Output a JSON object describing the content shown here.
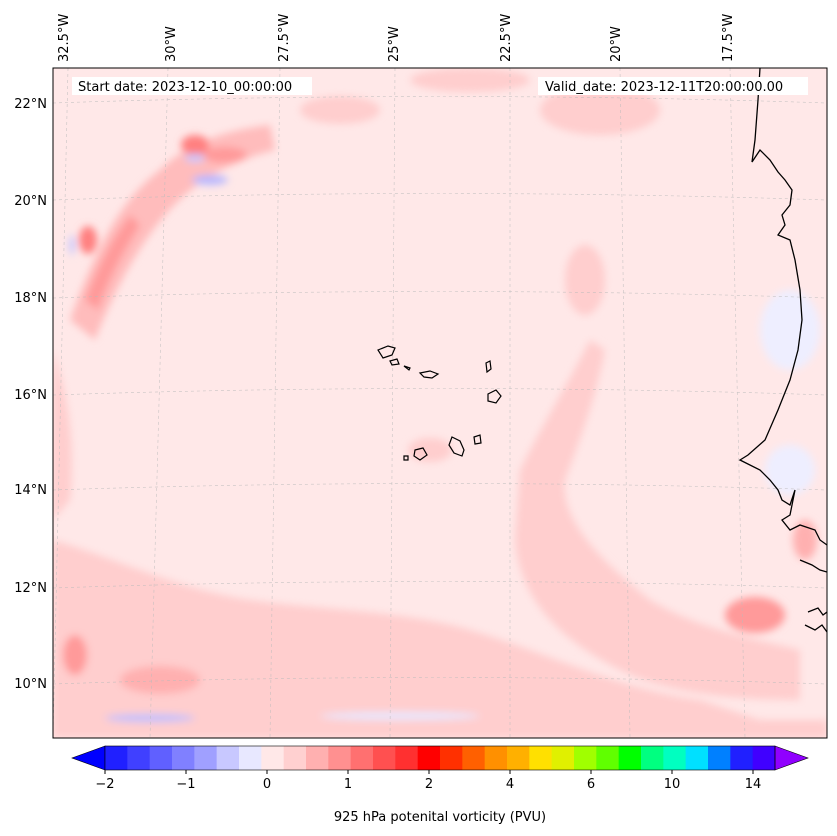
{
  "header": {
    "start_date": "Start date: 2023-12-10_00:00:00",
    "valid_date": "Valid_date: 2023-12-11T20:00:00.00"
  },
  "lon_labels": [
    "32.5°W",
    "30°W",
    "27.5°W",
    "25°W",
    "22.5°W",
    "20°W",
    "17.5°W"
  ],
  "lat_labels": [
    "22°N",
    "20°N",
    "18°N",
    "16°N",
    "14°N",
    "12°N",
    "10°N"
  ],
  "colorbar": {
    "label": "925 hPa potenital vorticity (PVU)",
    "ticks": [
      "−2",
      "−1",
      "0",
      "1",
      "2",
      "4",
      "6",
      "10",
      "14"
    ],
    "colors": [
      "#0000ff",
      "#2020ff",
      "#4040ff",
      "#6060ff",
      "#8080ff",
      "#a0a0ff",
      "#c8c8ff",
      "#e8e8ff",
      "#ffe8e8",
      "#ffd0d0",
      "#ffb0b0",
      "#ff9090",
      "#ff7070",
      "#ff5050",
      "#ff3030",
      "#ff0000",
      "#ff3000",
      "#ff6000",
      "#ff9000",
      "#ffb000",
      "#ffe000",
      "#e0f000",
      "#a0ff00",
      "#60ff00",
      "#00ff00",
      "#00ff80",
      "#00ffc0",
      "#00e0ff",
      "#0080ff",
      "#2020ff",
      "#4000ff",
      "#9000ff"
    ]
  }
}
